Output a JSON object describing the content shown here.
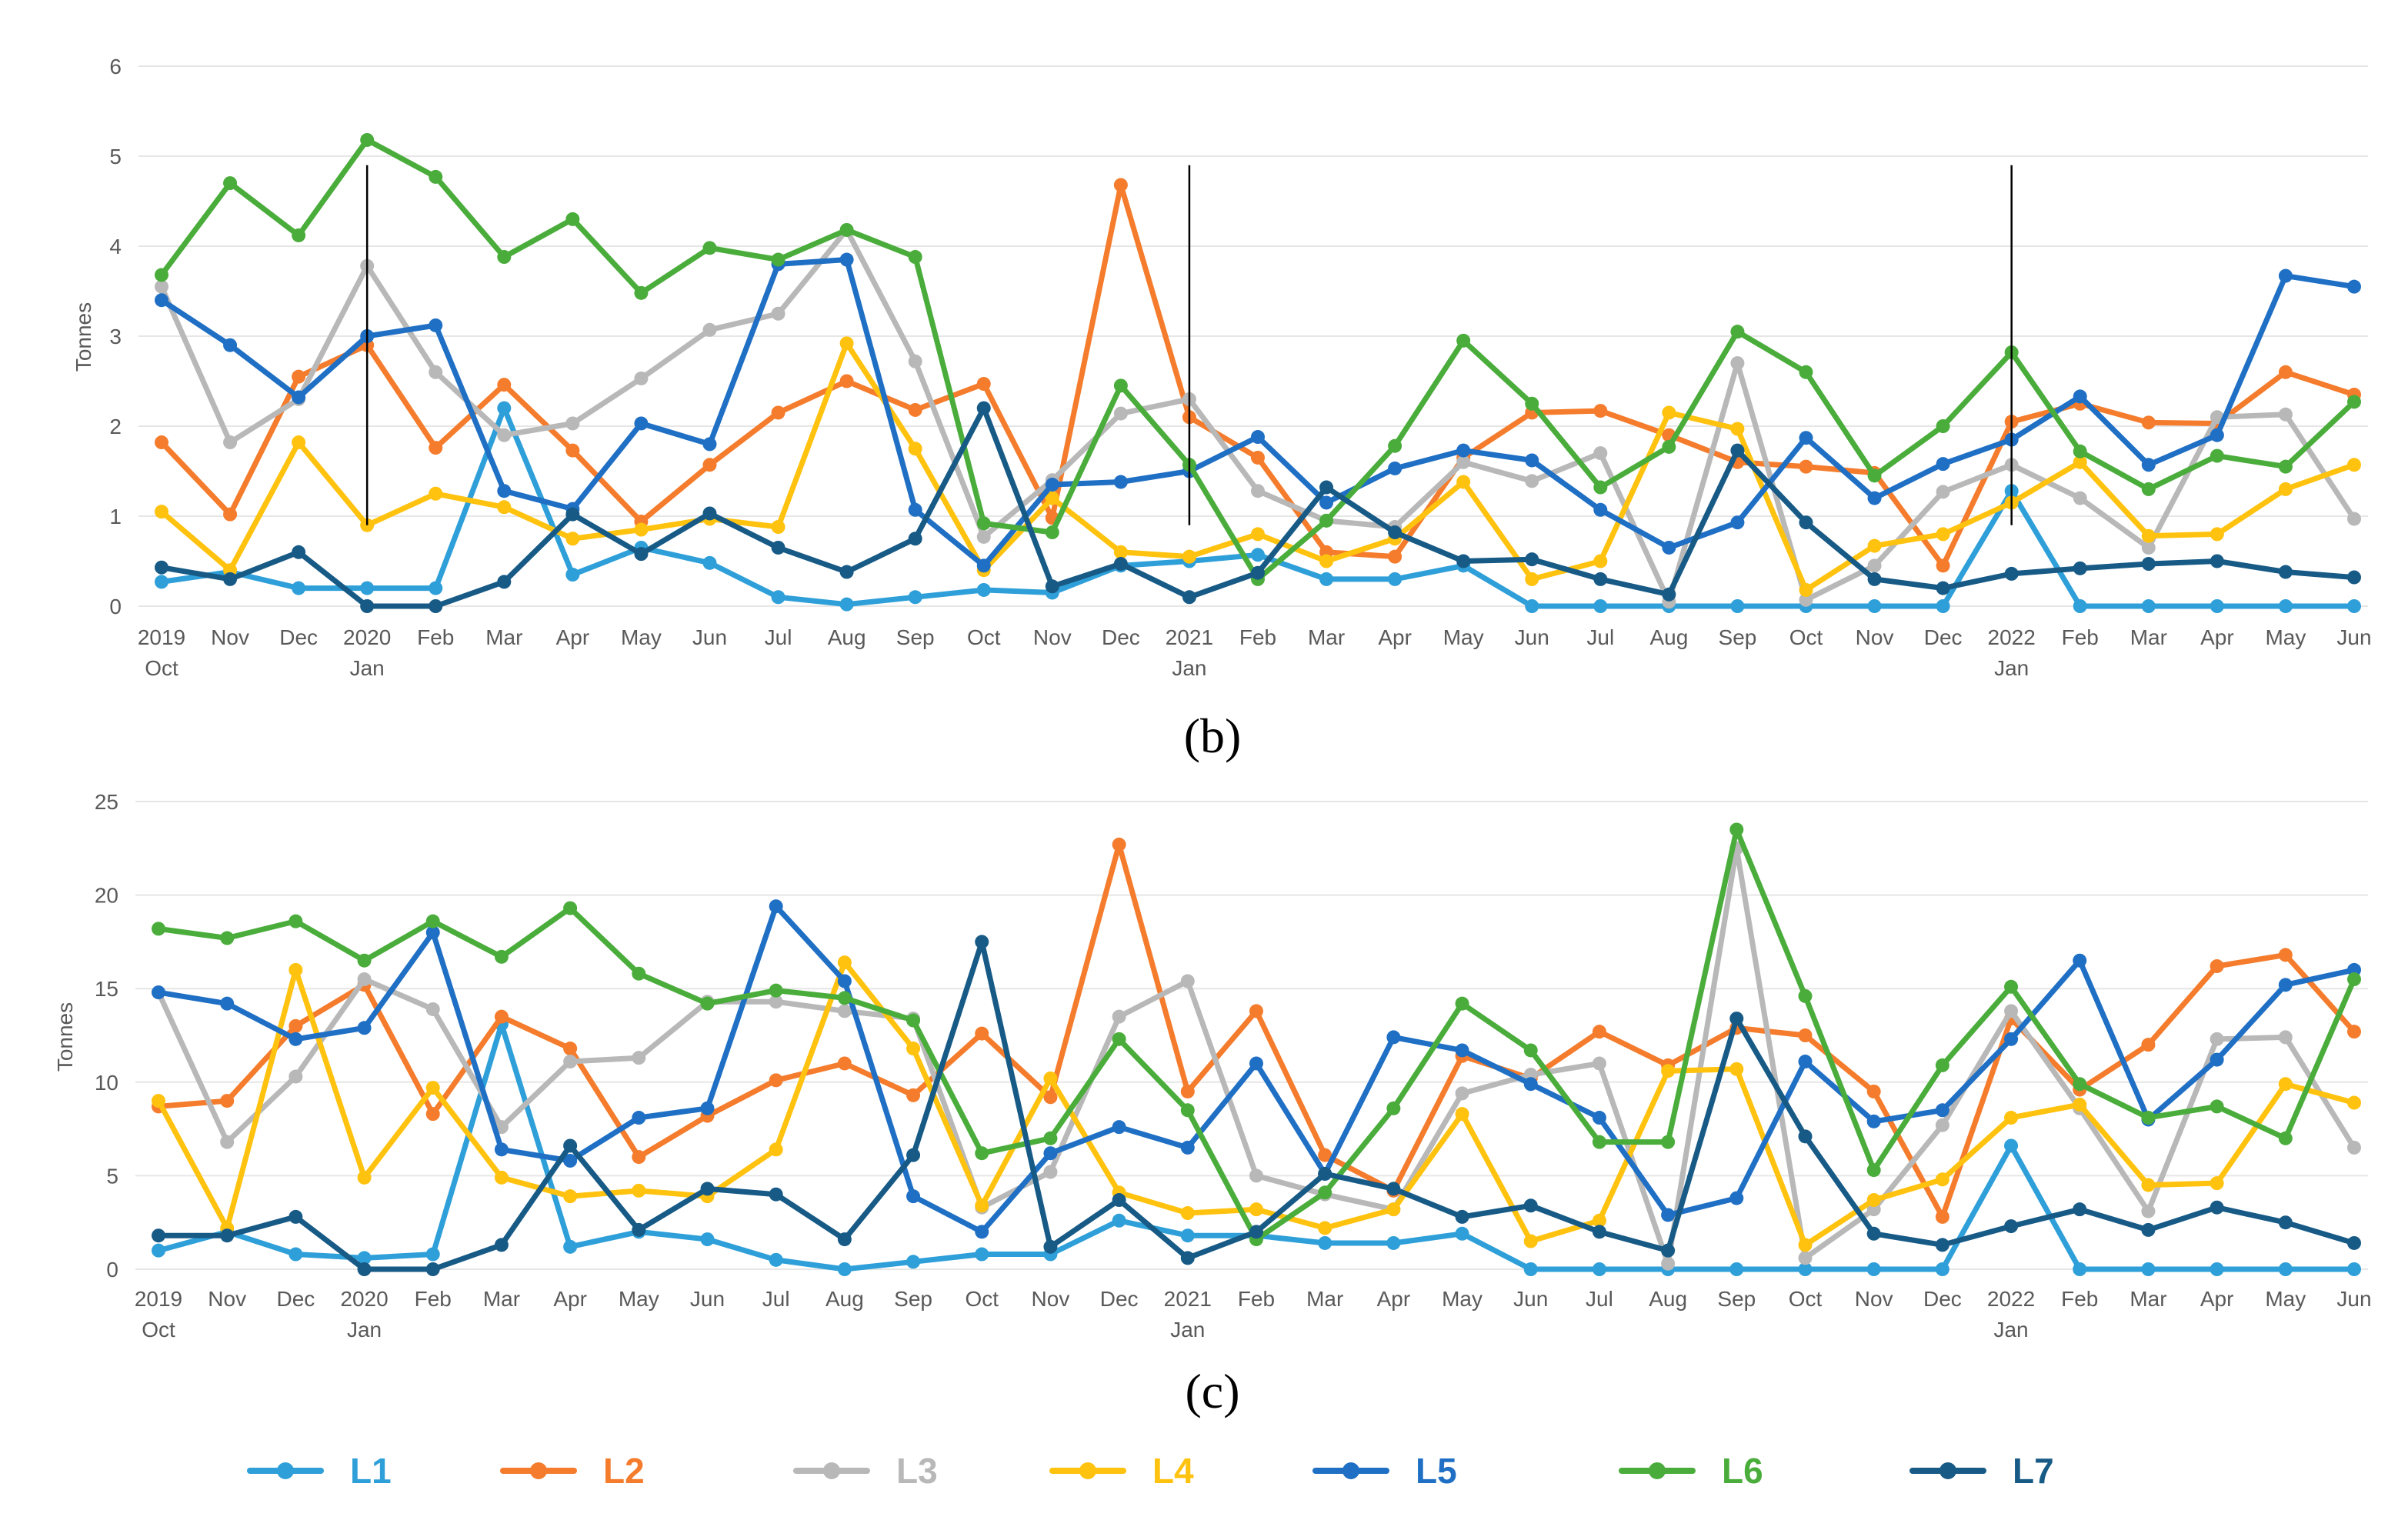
{
  "colors": {
    "L1": "#2e9fd8",
    "L2": "#f47c2c",
    "L3": "#b8b8b8",
    "L4": "#ffc20e",
    "L5": "#1f6fc4",
    "L6": "#4aad3b",
    "L7": "#175a86",
    "grid": "#e6e6e6",
    "marker": "#000000"
  },
  "legend": [
    "L1",
    "L2",
    "L3",
    "L4",
    "L5",
    "L6",
    "L7"
  ],
  "chart_data": [
    {
      "type": "line",
      "panel_label": "(b)",
      "ylabel": "Tonnes",
      "ylim": [
        0,
        6
      ],
      "yticks": [
        0,
        1,
        2,
        3,
        4,
        5,
        6
      ],
      "grid": true,
      "categories": [
        "Oct",
        "Nov",
        "Dec",
        "Jan",
        "Feb",
        "Mar",
        "Apr",
        "May",
        "Jun",
        "Jul",
        "Aug",
        "Sep",
        "Oct",
        "Nov",
        "Dec",
        "Jan",
        "Feb",
        "Mar",
        "Apr",
        "May",
        "Jun",
        "Jul",
        "Aug",
        "Sep",
        "Oct",
        "Nov",
        "Dec",
        "Jan",
        "Feb",
        "Mar",
        "Apr",
        "May",
        "Jun"
      ],
      "tick_labels": [
        [
          "2019",
          "Oct"
        ],
        [
          "Nov"
        ],
        [
          "Dec"
        ],
        [
          "2020",
          "Jan"
        ],
        [
          "Feb"
        ],
        [
          "Mar"
        ],
        [
          "Apr"
        ],
        [
          "May"
        ],
        [
          "Jun"
        ],
        [
          "Jul"
        ],
        [
          "Aug"
        ],
        [
          "Sep"
        ],
        [
          "Oct"
        ],
        [
          "Nov"
        ],
        [
          "Dec"
        ],
        [
          "2021",
          "Jan"
        ],
        [
          "Feb"
        ],
        [
          "Mar"
        ],
        [
          "Apr"
        ],
        [
          "May"
        ],
        [
          "Jun"
        ],
        [
          "Jul"
        ],
        [
          "Aug"
        ],
        [
          "Sep"
        ],
        [
          "Oct"
        ],
        [
          "Nov"
        ],
        [
          "Dec"
        ],
        [
          "2022",
          "Jan"
        ],
        [
          "Feb"
        ],
        [
          "Mar"
        ],
        [
          "Apr"
        ],
        [
          "May"
        ],
        [
          "Jun"
        ]
      ],
      "year_markers": [
        3,
        15,
        27
      ],
      "marker_range": [
        0.9,
        4.9
      ],
      "series": [
        {
          "name": "L1",
          "values": [
            0.27,
            0.38,
            0.2,
            0.2,
            0.2,
            2.2,
            0.35,
            0.65,
            0.48,
            0.1,
            0.02,
            0.1,
            0.18,
            0.15,
            0.45,
            0.5,
            0.57,
            0.3,
            0.3,
            0.45,
            0.0,
            0.0,
            0.0,
            0.0,
            0.0,
            0.0,
            0.0,
            1.28,
            0.0,
            0.0,
            0.0,
            0.0,
            0.0
          ]
        },
        {
          "name": "L2",
          "values": [
            1.82,
            1.02,
            2.55,
            2.9,
            1.76,
            2.46,
            1.73,
            0.94,
            1.57,
            2.15,
            2.5,
            2.18,
            2.47,
            0.98,
            4.68,
            2.1,
            1.65,
            0.6,
            0.55,
            1.65,
            2.15,
            2.17,
            1.9,
            1.6,
            1.55,
            1.48,
            0.45,
            2.05,
            2.25,
            2.04,
            2.03,
            2.6,
            2.35
          ]
        },
        {
          "name": "L3",
          "values": [
            3.55,
            1.82,
            2.3,
            3.78,
            2.6,
            1.9,
            2.03,
            2.53,
            3.07,
            3.25,
            4.18,
            2.72,
            0.77,
            1.4,
            2.14,
            2.3,
            1.28,
            0.95,
            0.88,
            1.6,
            1.39,
            1.7,
            0.05,
            2.7,
            0.07,
            0.45,
            1.27,
            1.57,
            1.2,
            0.65,
            2.1,
            2.13,
            0.97
          ]
        },
        {
          "name": "L4",
          "values": [
            1.05,
            0.4,
            1.82,
            0.9,
            1.25,
            1.1,
            0.75,
            0.85,
            0.97,
            0.88,
            2.92,
            1.75,
            0.4,
            1.2,
            0.6,
            0.55,
            0.8,
            0.5,
            0.75,
            1.38,
            0.3,
            0.5,
            2.15,
            1.97,
            0.18,
            0.67,
            0.8,
            1.15,
            1.6,
            0.78,
            0.8,
            1.3,
            1.57
          ]
        },
        {
          "name": "L5",
          "values": [
            3.4,
            2.9,
            2.32,
            3.0,
            3.12,
            1.28,
            1.08,
            2.03,
            1.8,
            3.8,
            3.85,
            1.07,
            0.45,
            1.35,
            1.38,
            1.5,
            1.88,
            1.15,
            1.53,
            1.73,
            1.62,
            1.07,
            0.65,
            0.93,
            1.87,
            1.2,
            1.58,
            1.85,
            2.33,
            1.57,
            1.9,
            3.67,
            3.55
          ]
        },
        {
          "name": "L6",
          "values": [
            3.68,
            4.7,
            4.12,
            5.18,
            4.77,
            3.88,
            4.3,
            3.48,
            3.98,
            3.85,
            4.18,
            3.88,
            0.92,
            0.82,
            2.45,
            1.57,
            0.3,
            0.95,
            1.78,
            2.95,
            2.25,
            1.32,
            1.77,
            3.05,
            2.6,
            1.45,
            2.0,
            2.82,
            1.72,
            1.3,
            1.67,
            1.55,
            2.27
          ]
        },
        {
          "name": "L7",
          "values": [
            0.43,
            0.3,
            0.6,
            0.0,
            0.0,
            0.27,
            1.02,
            0.58,
            1.03,
            0.65,
            0.38,
            0.75,
            2.2,
            0.22,
            0.47,
            0.1,
            0.37,
            1.32,
            0.82,
            0.5,
            0.52,
            0.3,
            0.13,
            1.73,
            0.93,
            0.3,
            0.2,
            0.36,
            0.42,
            0.47,
            0.5,
            0.38,
            0.32
          ]
        }
      ]
    },
    {
      "type": "line",
      "panel_label": "(c)",
      "ylabel": "Tonnes",
      "ylim": [
        0,
        25
      ],
      "yticks": [
        0,
        5,
        10,
        15,
        20,
        25
      ],
      "grid": true,
      "categories": [
        "Oct",
        "Nov",
        "Dec",
        "Jan",
        "Feb",
        "Mar",
        "Apr",
        "May",
        "Jun",
        "Jul",
        "Aug",
        "Sep",
        "Oct",
        "Nov",
        "Dec",
        "Jan",
        "Feb",
        "Mar",
        "Apr",
        "May",
        "Jun",
        "Jul",
        "Aug",
        "Sep",
        "Oct",
        "Nov",
        "Dec",
        "Jan",
        "Feb",
        "Mar",
        "Apr",
        "May",
        "Jun"
      ],
      "tick_labels": [
        [
          "2019",
          "Oct"
        ],
        [
          "Nov"
        ],
        [
          "Dec"
        ],
        [
          "2020",
          "Jan"
        ],
        [
          "Feb"
        ],
        [
          "Mar"
        ],
        [
          "Apr"
        ],
        [
          "May"
        ],
        [
          "Jun"
        ],
        [
          "Jul"
        ],
        [
          "Aug"
        ],
        [
          "Sep"
        ],
        [
          "Oct"
        ],
        [
          "Nov"
        ],
        [
          "Dec"
        ],
        [
          "2021",
          "Jan"
        ],
        [
          "Feb"
        ],
        [
          "Mar"
        ],
        [
          "Apr"
        ],
        [
          "May"
        ],
        [
          "Jun"
        ],
        [
          "Jul"
        ],
        [
          "Aug"
        ],
        [
          "Sep"
        ],
        [
          "Oct"
        ],
        [
          "Nov"
        ],
        [
          "Dec"
        ],
        [
          "2022",
          "Jan"
        ],
        [
          "Feb"
        ],
        [
          "Mar"
        ],
        [
          "Apr"
        ],
        [
          "May"
        ],
        [
          "Jun"
        ]
      ],
      "year_markers": [],
      "series": [
        {
          "name": "L1",
          "values": [
            1.0,
            2.0,
            0.8,
            0.6,
            0.8,
            13.1,
            1.2,
            2.0,
            1.6,
            0.5,
            0.0,
            0.4,
            0.8,
            0.8,
            2.6,
            1.8,
            1.8,
            1.4,
            1.4,
            1.9,
            0.0,
            0.0,
            0.0,
            0.0,
            0.0,
            0.0,
            0.0,
            6.6,
            0.0,
            0.0,
            0.0,
            0.0,
            0.0
          ]
        },
        {
          "name": "L2",
          "values": [
            8.7,
            9.0,
            13.0,
            15.2,
            8.3,
            13.5,
            11.8,
            6.0,
            8.2,
            10.1,
            11.0,
            9.3,
            12.6,
            9.2,
            22.7,
            9.5,
            13.8,
            6.1,
            4.2,
            11.4,
            10.2,
            12.7,
            10.9,
            12.9,
            12.5,
            9.5,
            2.8,
            13.4,
            9.6,
            12.0,
            16.2,
            16.8,
            12.7
          ]
        },
        {
          "name": "L3",
          "values": [
            14.8,
            6.8,
            10.3,
            15.5,
            13.9,
            7.6,
            11.1,
            11.3,
            14.3,
            14.3,
            13.8,
            13.4,
            3.3,
            5.2,
            13.5,
            15.4,
            5.0,
            4.0,
            3.2,
            9.4,
            10.4,
            11.0,
            0.3,
            22.5,
            0.6,
            3.2,
            7.7,
            13.8,
            8.6,
            3.1,
            12.3,
            12.4,
            6.5
          ]
        },
        {
          "name": "L4",
          "values": [
            9.0,
            2.2,
            16.0,
            4.9,
            9.7,
            4.9,
            3.9,
            4.2,
            3.9,
            6.4,
            16.4,
            11.8,
            3.4,
            10.2,
            4.1,
            3.0,
            3.2,
            2.2,
            3.2,
            8.3,
            1.5,
            2.6,
            10.6,
            10.7,
            1.3,
            3.7,
            4.8,
            8.1,
            8.8,
            4.5,
            4.6,
            9.9,
            8.9
          ]
        },
        {
          "name": "L5",
          "values": [
            14.8,
            14.2,
            12.3,
            12.9,
            18.0,
            6.4,
            5.8,
            8.1,
            8.6,
            19.4,
            15.4,
            3.9,
            2.0,
            6.2,
            7.6,
            6.5,
            11.0,
            5.1,
            12.4,
            11.7,
            9.9,
            8.1,
            2.9,
            3.8,
            11.1,
            7.9,
            8.5,
            12.3,
            16.5,
            8.0,
            11.2,
            15.2,
            16.0
          ]
        },
        {
          "name": "L6",
          "values": [
            18.2,
            17.7,
            18.6,
            16.5,
            18.6,
            16.7,
            19.3,
            15.8,
            14.2,
            14.9,
            14.5,
            13.3,
            6.2,
            7.0,
            12.3,
            8.5,
            1.6,
            4.1,
            8.6,
            14.2,
            11.7,
            6.8,
            6.8,
            23.5,
            14.6,
            5.3,
            10.9,
            15.1,
            9.9,
            8.1,
            8.7,
            7.0,
            15.5
          ]
        },
        {
          "name": "L7",
          "values": [
            1.8,
            1.8,
            2.8,
            0.0,
            0.0,
            1.3,
            6.6,
            2.1,
            4.3,
            4.0,
            1.6,
            6.1,
            17.5,
            1.2,
            3.7,
            0.6,
            2.0,
            5.1,
            4.3,
            2.8,
            3.4,
            2.0,
            1.0,
            13.4,
            7.1,
            1.9,
            1.3,
            2.3,
            3.2,
            2.1,
            3.3,
            2.5,
            1.4
          ]
        }
      ]
    }
  ]
}
